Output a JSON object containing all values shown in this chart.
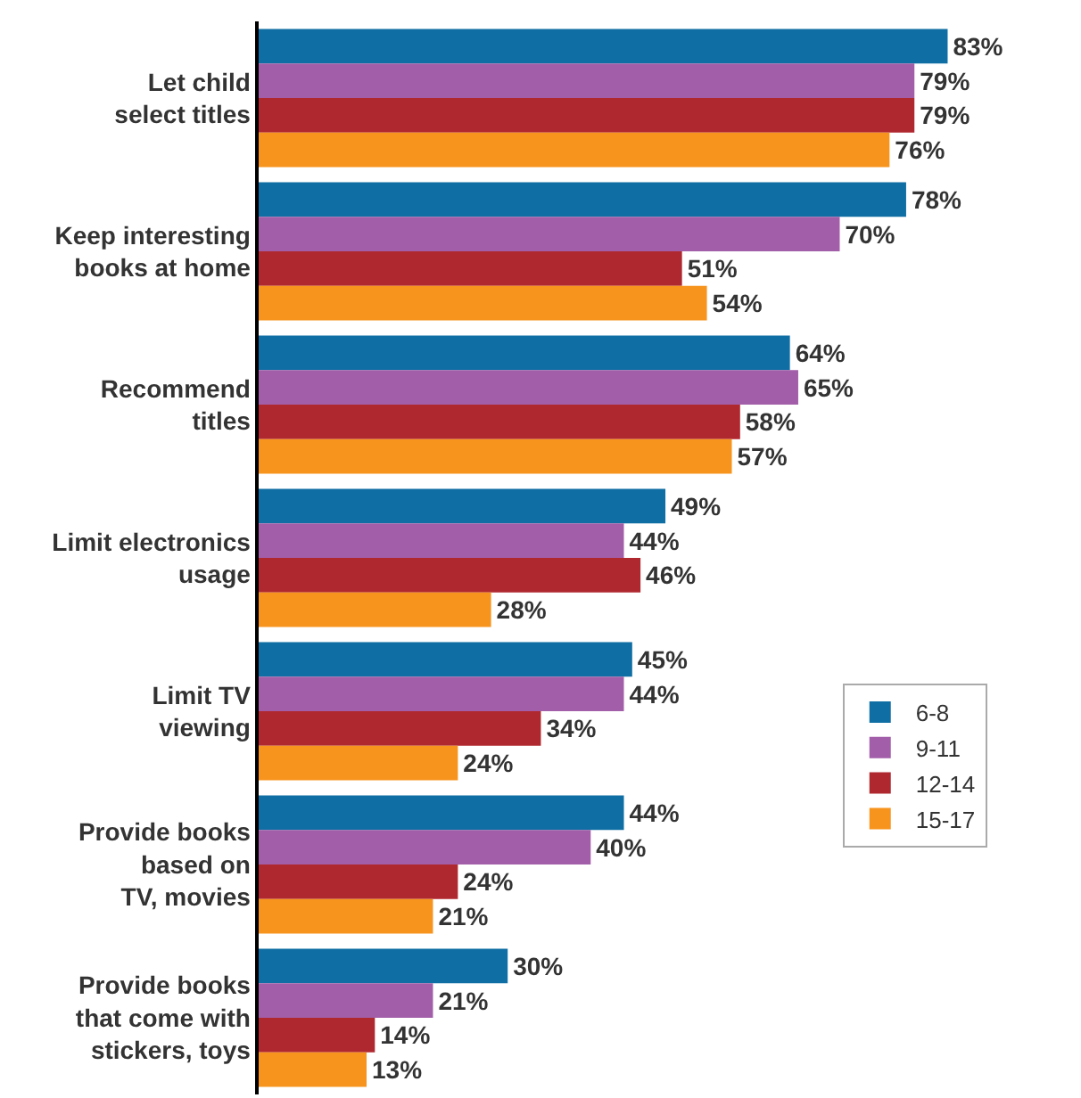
{
  "chart_data": {
    "type": "bar",
    "orientation": "horizontal",
    "categories": [
      "Let child\nselect titles",
      "Keep interesting\nbooks at home",
      "Recommend\ntitles",
      "Limit electronics\nusage",
      "Limit TV\nviewing",
      "Provide books\nbased on\nTV, movies",
      "Provide books\nthat come with\nstickers, toys"
    ],
    "series": [
      {
        "name": "6-8",
        "color": "#0f6ea3",
        "values": [
          83,
          78,
          64,
          49,
          45,
          44,
          30
        ],
        "value_labels": [
          "83%",
          "78%",
          "64%",
          "49%",
          "45%",
          "44%",
          "30%"
        ]
      },
      {
        "name": "9-11",
        "color": "#a25ea8",
        "values": [
          79,
          70,
          65,
          44,
          44,
          40,
          21
        ],
        "value_labels": [
          "79%",
          "70%",
          "65%",
          "44%",
          "44%",
          "40%",
          "21%"
        ]
      },
      {
        "name": "12-14",
        "color": "#b0282f",
        "values": [
          79,
          51,
          58,
          46,
          34,
          24,
          14
        ],
        "value_labels": [
          "79%",
          "51%",
          "58%",
          "46%",
          "34%",
          "24%",
          "14%"
        ]
      },
      {
        "name": "15-17",
        "color": "#f7941d",
        "values": [
          76,
          54,
          57,
          28,
          24,
          21,
          13
        ],
        "value_labels": [
          "76%",
          "54%",
          "57%",
          "28%",
          "24%",
          "21%",
          "13%"
        ]
      }
    ],
    "legend": "bottom right"
  }
}
